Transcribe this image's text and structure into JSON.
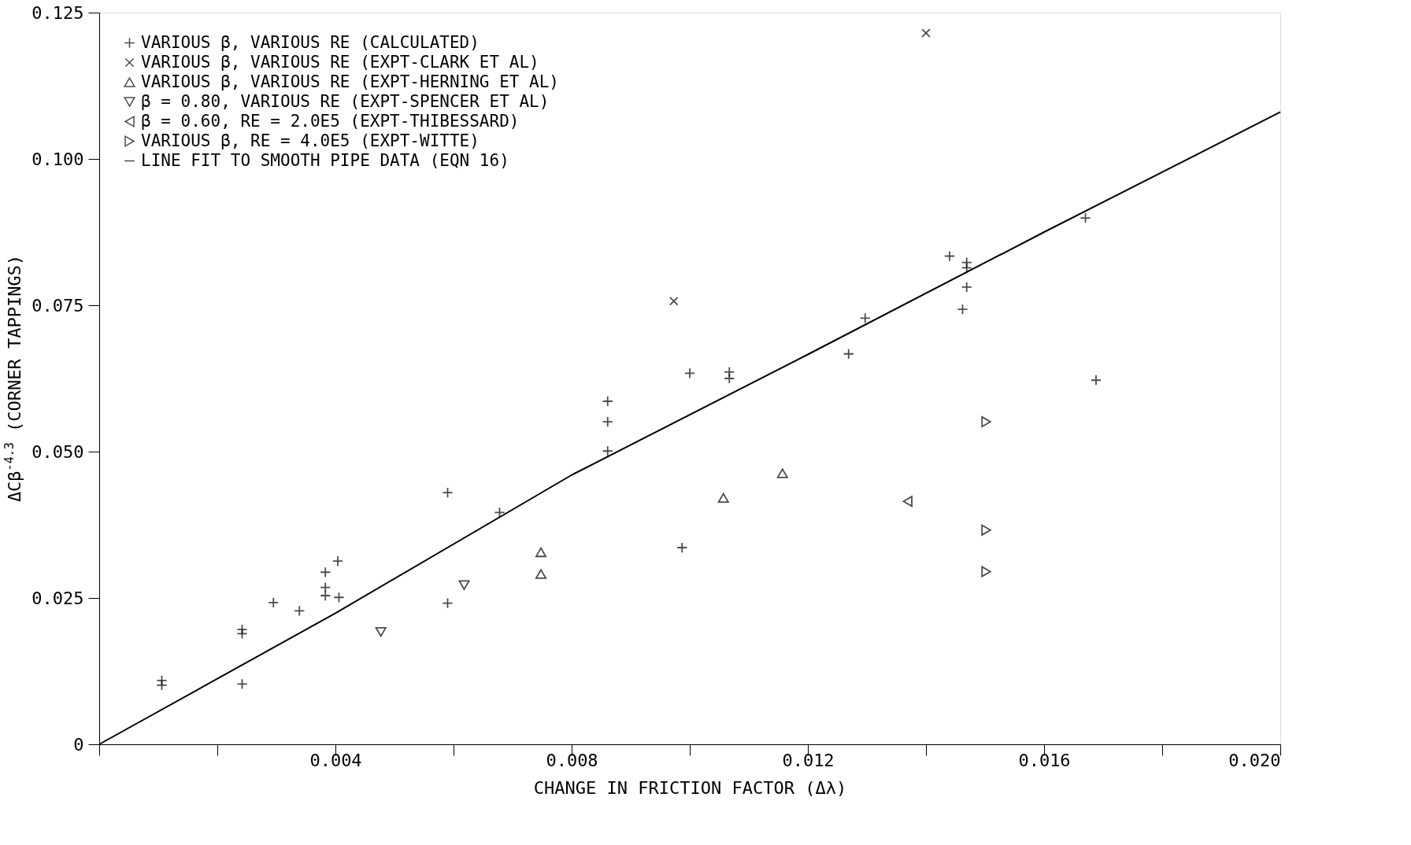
{
  "chart_data": {
    "type": "scatter",
    "xlabel": "CHANGE IN FRICTION FACTOR (Δλ)",
    "ylabel": "ΔCβ$^{-4.3}$ (CORNER TAPPINGS)",
    "xlim": [
      0,
      0.02
    ],
    "ylim": [
      0,
      0.125
    ],
    "xticks": [
      {
        "value": 0,
        "label": null
      },
      {
        "value": 0.002,
        "label": null
      },
      0.004,
      {
        "value": 0.006,
        "label": null
      },
      0.008,
      {
        "value": 0.01,
        "label": null
      },
      0.012,
      {
        "value": 0.014,
        "label": null
      },
      0.016,
      {
        "value": 0.018,
        "label": null
      },
      {
        "value": 0.02,
        "label": "0.020"
      }
    ],
    "yticks": [
      0,
      0.025,
      {
        "value": 0.05,
        "label": "0.050"
      },
      0.075,
      {
        "value": 0.1,
        "label": "0.100"
      },
      0.125
    ],
    "grid": false,
    "legend": "top left",
    "series": [
      {
        "name": "VARIOUS β, VARIOUS RE (CALCULATED)",
        "color": "#000000",
        "marker": "plus",
        "x": [
          0.00106,
          0.00106,
          0.00242,
          0.00242,
          0.00242,
          0.00295,
          0.00339,
          0.00383,
          0.00383,
          0.00383,
          0.00404,
          0.00406,
          0.0059,
          0.00678,
          0.0059,
          0.00861,
          0.00861,
          0.00861,
          0.01,
          0.01067,
          0.01067,
          0.01269,
          0.01297,
          0.0144,
          0.01469,
          0.01469,
          0.01469,
          0.01462,
          0.0167,
          0.01688,
          0.00987
        ],
        "values": [
          0.0109,
          0.0101,
          0.0196,
          0.0189,
          0.0103,
          0.0242,
          0.0228,
          0.0294,
          0.0268,
          0.0254,
          0.0313,
          0.0251,
          0.043,
          0.0396,
          0.0241,
          0.0586,
          0.0551,
          0.0501,
          0.0634,
          0.0636,
          0.0625,
          0.0667,
          0.0728,
          0.0834,
          0.0823,
          0.0814,
          0.0781,
          0.0743,
          0.0899,
          0.0622,
          0.0336
        ]
      },
      {
        "name": "VARIOUS β, VARIOUS RE (EXPT-CLARK ET AL)",
        "color": "#000000",
        "marker": "cross",
        "x": [
          0.014,
          0.00973
        ],
        "values": [
          0.1215,
          0.0757
        ]
      },
      {
        "name": "VARIOUS β, VARIOUS RE (EXPT-HERNING ET AL)",
        "color": "#000000",
        "marker": "triangle-up",
        "x": [
          0.00748,
          0.00748,
          0.01057,
          0.01157
        ],
        "values": [
          0.0328,
          0.0291,
          0.0421,
          0.0463
        ]
      },
      {
        "name": "β = 0.80, VARIOUS RE (EXPT-SPENCER ET AL)",
        "color": "#000000",
        "marker": "triangle-down",
        "x": [
          0.00477,
          0.00618
        ],
        "values": [
          0.0192,
          0.0272
        ]
      },
      {
        "name": "β = 0.60, RE = 2.0E5 (EXPT-THIBESSARD)",
        "color": "#000000",
        "marker": "triangle-left",
        "x": [
          0.01369
        ],
        "values": [
          0.0415
        ]
      },
      {
        "name": "VARIOUS β, RE = 4.0E5 (EXPT-WITTE)",
        "color": "#000000",
        "marker": "triangle-right",
        "x": [
          0.01502,
          0.01502,
          0.01502
        ],
        "values": [
          0.0551,
          0.0366,
          0.0295
        ]
      },
      {
        "name": "LINE FIT TO SMOOTH PIPE DATA (EQN 16)",
        "color": "#000000",
        "type": "line",
        "line_style": "solid",
        "marker": "none",
        "x": [
          0,
          0.004,
          0.008,
          0.012,
          0.016,
          0.02
        ],
        "values": [
          0,
          0.0224,
          0.046,
          0.0666,
          0.0875,
          0.108
        ]
      }
    ]
  }
}
